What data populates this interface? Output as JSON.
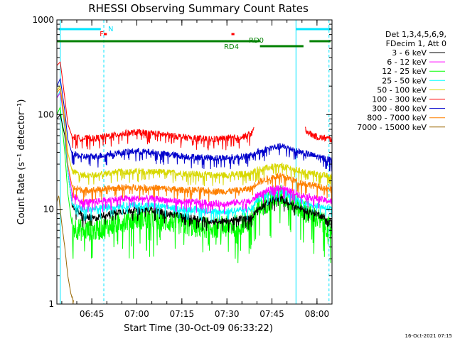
{
  "chart_data": {
    "type": "line",
    "title": "RHESSI Observing Summary Count Rates",
    "xlabel": "Start Time (30-Oct-09 06:33:22)",
    "ylabel": "Count Rate (s⁻¹ detector⁻¹)",
    "yscale": "log",
    "ylim": [
      1,
      1000
    ],
    "y_ticks": [
      "1",
      "10",
      "100",
      "1000"
    ],
    "xlim": [
      "06:33:22",
      "08:05:00"
    ],
    "x_ticks": [
      "06:45",
      "07:00",
      "07:15",
      "07:30",
      "07:45",
      "08:00"
    ],
    "timestamp": "16-Oct-2021 07:15",
    "legend_header": [
      "Det 1,3,4,5,6,9,",
      "FDecim 1, Att 0"
    ],
    "legend_position": "right",
    "flags": [
      {
        "label": "N",
        "color": "#00e5ff"
      },
      {
        "label": "F",
        "color": "#ff0000"
      },
      {
        "label": "RD0",
        "color": "#008000"
      },
      {
        "label": "RD4",
        "color": "#008000"
      }
    ],
    "series": [
      {
        "name": "3 - 6 keV",
        "color": "#000000",
        "points": [
          [
            "06:33:22",
            90
          ],
          [
            "06:34:30",
            100
          ],
          [
            "06:36:00",
            60
          ],
          [
            "06:37:00",
            25
          ],
          [
            "06:38:30",
            11
          ],
          [
            "06:42:00",
            8.5
          ],
          [
            "06:46:00",
            8
          ],
          [
            "06:50:00",
            9
          ],
          [
            "06:55:00",
            9.5
          ],
          [
            "07:00:00",
            10
          ],
          [
            "07:05:00",
            10
          ],
          [
            "07:10:00",
            9
          ],
          [
            "07:15:00",
            8.5
          ],
          [
            "07:20:00",
            8
          ],
          [
            "07:25:00",
            7.5
          ],
          [
            "07:30:00",
            7.5
          ],
          [
            "07:35:00",
            8
          ],
          [
            "07:38:00",
            8
          ],
          [
            "07:40:00",
            10
          ],
          [
            "07:45:00",
            12.5
          ],
          [
            "07:48:00",
            13
          ],
          [
            "07:50:00",
            12
          ],
          [
            "07:55:00",
            10
          ],
          [
            "08:00:00",
            9
          ],
          [
            "08:05:00",
            7.5
          ]
        ]
      },
      {
        "name": "6 - 12 keV",
        "color": "#ff00ff",
        "points": [
          [
            "06:33:22",
            150
          ],
          [
            "06:34:30",
            170
          ],
          [
            "06:36:00",
            80
          ],
          [
            "06:37:00",
            30
          ],
          [
            "06:38:30",
            14
          ],
          [
            "06:42:00",
            12
          ],
          [
            "06:46:00",
            12
          ],
          [
            "06:50:00",
            12.5
          ],
          [
            "06:55:00",
            13
          ],
          [
            "07:00:00",
            13
          ],
          [
            "07:05:00",
            13
          ],
          [
            "07:10:00",
            12.5
          ],
          [
            "07:15:00",
            12
          ],
          [
            "07:20:00",
            12
          ],
          [
            "07:25:00",
            11.5
          ],
          [
            "07:30:00",
            11.5
          ],
          [
            "07:35:00",
            12
          ],
          [
            "07:38:00",
            12
          ],
          [
            "07:40:00",
            14
          ],
          [
            "07:45:00",
            16.5
          ],
          [
            "07:48:00",
            17
          ],
          [
            "07:50:00",
            16
          ],
          [
            "07:55:00",
            14
          ],
          [
            "08:00:00",
            13
          ],
          [
            "08:05:00",
            12
          ]
        ]
      },
      {
        "name": "12 - 25 keV",
        "color": "#00ff00",
        "points": [
          [
            "06:33:22",
            100
          ],
          [
            "06:34:30",
            120
          ],
          [
            "06:36:00",
            40
          ],
          [
            "06:37:00",
            15
          ],
          [
            "06:38:30",
            6.5
          ],
          [
            "06:42:00",
            6
          ],
          [
            "06:46:00",
            6
          ],
          [
            "06:50:00",
            6.5
          ],
          [
            "06:55:00",
            7.5
          ],
          [
            "07:00:00",
            8
          ],
          [
            "07:05:00",
            8
          ],
          [
            "07:10:00",
            7.5
          ],
          [
            "07:15:00",
            7
          ],
          [
            "07:20:00",
            6.5
          ],
          [
            "07:25:00",
            6.5
          ],
          [
            "07:30:00",
            6.5
          ],
          [
            "07:35:00",
            7
          ],
          [
            "07:38:00",
            7.5
          ],
          [
            "07:40:00",
            10
          ],
          [
            "07:45:00",
            13
          ],
          [
            "07:48:00",
            14
          ],
          [
            "07:50:00",
            13
          ],
          [
            "07:55:00",
            10
          ],
          [
            "08:00:00",
            8
          ],
          [
            "08:05:00",
            6
          ]
        ]
      },
      {
        "name": "25 - 50 keV",
        "color": "#00ffff",
        "points": [
          [
            "06:33:22",
            150
          ],
          [
            "06:34:30",
            180
          ],
          [
            "06:36:00",
            70
          ],
          [
            "06:37:00",
            25
          ],
          [
            "06:38:30",
            11
          ],
          [
            "06:42:00",
            10
          ],
          [
            "06:46:00",
            10
          ],
          [
            "06:50:00",
            10.5
          ],
          [
            "06:55:00",
            11
          ],
          [
            "07:00:00",
            11
          ],
          [
            "07:05:00",
            11
          ],
          [
            "07:10:00",
            10.5
          ],
          [
            "07:15:00",
            10
          ],
          [
            "07:20:00",
            10
          ],
          [
            "07:25:00",
            9.5
          ],
          [
            "07:30:00",
            9.5
          ],
          [
            "07:35:00",
            10
          ],
          [
            "07:38:00",
            10
          ],
          [
            "07:40:00",
            12.5
          ],
          [
            "07:45:00",
            15
          ],
          [
            "07:48:00",
            15.5
          ],
          [
            "07:50:00",
            14.5
          ],
          [
            "07:55:00",
            12
          ],
          [
            "08:00:00",
            11
          ],
          [
            "08:05:00",
            10
          ]
        ]
      },
      {
        "name": "50 - 100 keV",
        "color": "#d8d800",
        "points": [
          [
            "06:33:22",
            180
          ],
          [
            "06:34:30",
            200
          ],
          [
            "06:36:00",
            90
          ],
          [
            "06:37:00",
            40
          ],
          [
            "06:38:30",
            25
          ],
          [
            "06:42:00",
            23
          ],
          [
            "06:46:00",
            23
          ],
          [
            "06:50:00",
            24
          ],
          [
            "06:55:00",
            25
          ],
          [
            "07:00:00",
            25
          ],
          [
            "07:05:00",
            25
          ],
          [
            "07:10:00",
            24.5
          ],
          [
            "07:15:00",
            24
          ],
          [
            "07:20:00",
            23.5
          ],
          [
            "07:25:00",
            23
          ],
          [
            "07:30:00",
            23
          ],
          [
            "07:35:00",
            23.5
          ],
          [
            "07:38:00",
            24
          ],
          [
            "07:40:00",
            26
          ],
          [
            "07:45:00",
            28
          ],
          [
            "07:48:00",
            28.5
          ],
          [
            "07:50:00",
            27.5
          ],
          [
            "07:55:00",
            25
          ],
          [
            "08:00:00",
            23.5
          ],
          [
            "08:05:00",
            22
          ]
        ]
      },
      {
        "name": "100 - 300 keV",
        "color": "#ff0000",
        "points": [
          [
            "06:33:22",
            330
          ],
          [
            "06:34:30",
            360
          ],
          [
            "06:36:00",
            150
          ],
          [
            "06:37:00",
            80
          ],
          [
            "06:38:30",
            58
          ],
          [
            "06:42:00",
            56
          ],
          [
            "06:46:00",
            56
          ],
          [
            "06:50:00",
            59
          ],
          [
            "06:55:00",
            63
          ],
          [
            "07:00:00",
            65
          ],
          [
            "07:05:00",
            64
          ],
          [
            "07:10:00",
            61
          ],
          [
            "07:15:00",
            58
          ],
          [
            "07:20:00",
            56
          ],
          [
            "07:25:00",
            55
          ],
          [
            "07:30:00",
            56
          ],
          [
            "07:35:00",
            58
          ],
          [
            "07:38:00",
            62
          ],
          [
            "07:39:00",
            70
          ]
        ]
      },
      {
        "name": "300 - 800 keV",
        "color": "#0000cc",
        "points": [
          [
            "06:33:22",
            200
          ],
          [
            "06:34:30",
            240
          ],
          [
            "06:36:00",
            110
          ],
          [
            "06:37:00",
            55
          ],
          [
            "06:38:30",
            38
          ],
          [
            "06:42:00",
            36
          ],
          [
            "06:46:00",
            36
          ],
          [
            "06:50:00",
            38
          ],
          [
            "06:55:00",
            40
          ],
          [
            "07:00:00",
            41
          ],
          [
            "07:05:00",
            40
          ],
          [
            "07:10:00",
            38
          ],
          [
            "07:15:00",
            36.5
          ],
          [
            "07:20:00",
            35.5
          ],
          [
            "07:25:00",
            35
          ],
          [
            "07:30:00",
            35
          ],
          [
            "07:35:00",
            36
          ],
          [
            "07:38:00",
            37
          ],
          [
            "07:40:00",
            40
          ],
          [
            "07:45:00",
            45
          ],
          [
            "07:48:00",
            46
          ],
          [
            "07:50:00",
            45
          ],
          [
            "07:55:00",
            40
          ],
          [
            "08:00:00",
            36
          ],
          [
            "08:05:00",
            33
          ]
        ]
      },
      {
        "name": "800 - 7000 keV",
        "color": "#ff8000",
        "points": [
          [
            "06:33:22",
            170
          ],
          [
            "06:34:30",
            190
          ],
          [
            "06:36:00",
            80
          ],
          [
            "06:37:00",
            30
          ],
          [
            "06:38:30",
            17
          ],
          [
            "06:42:00",
            16
          ],
          [
            "06:46:00",
            16
          ],
          [
            "06:50:00",
            16.5
          ],
          [
            "06:55:00",
            17
          ],
          [
            "07:00:00",
            17
          ],
          [
            "07:05:00",
            17
          ],
          [
            "07:10:00",
            16.5
          ],
          [
            "07:15:00",
            16
          ],
          [
            "07:20:00",
            16
          ],
          [
            "07:25:00",
            15.5
          ],
          [
            "07:30:00",
            15.5
          ],
          [
            "07:35:00",
            16
          ],
          [
            "07:38:00",
            16.5
          ],
          [
            "07:40:00",
            19
          ],
          [
            "07:45:00",
            22
          ],
          [
            "07:48:00",
            22.5
          ],
          [
            "07:50:00",
            21.5
          ],
          [
            "07:55:00",
            19
          ],
          [
            "08:00:00",
            17.5
          ],
          [
            "08:05:00",
            16
          ]
        ]
      },
      {
        "name": "7000 - 15000 keV",
        "color": "#996600",
        "points": [
          [
            "06:33:22",
            12
          ],
          [
            "06:34:00",
            14
          ],
          [
            "06:35:00",
            7
          ],
          [
            "06:36:00",
            4
          ],
          [
            "06:37:00",
            2
          ],
          [
            "06:38:00",
            1.3
          ],
          [
            "06:39:00",
            1.0
          ]
        ]
      }
    ]
  }
}
